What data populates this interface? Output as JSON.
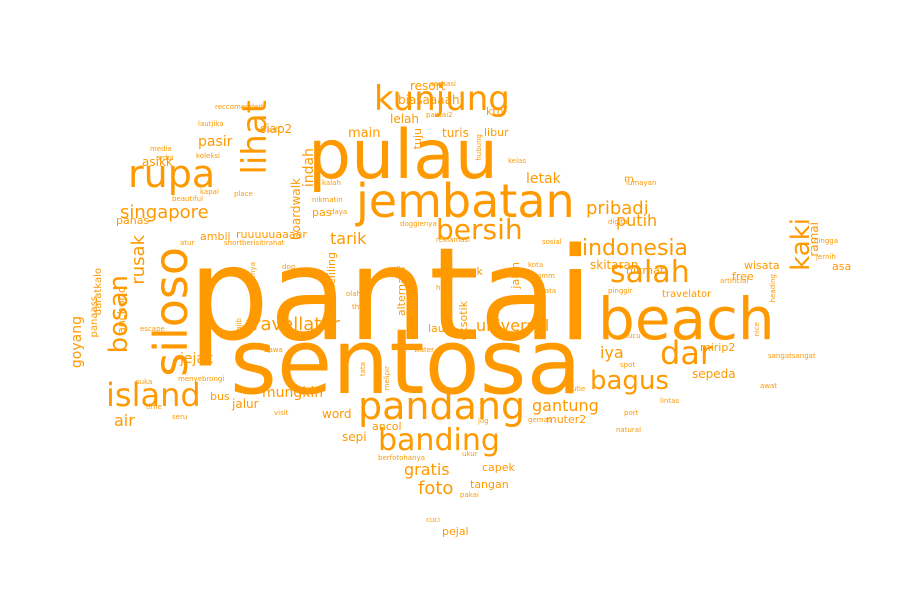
{
  "cloud": {
    "color": "#ff9900",
    "words": [
      {
        "text": "pantai",
        "vertical": false
      },
      {
        "text": "sentosa",
        "vertical": false
      },
      {
        "text": "pulau",
        "vertical": false
      },
      {
        "text": "beach",
        "vertical": false
      },
      {
        "text": "jembatan",
        "vertical": false
      },
      {
        "text": "pandang",
        "vertical": false
      },
      {
        "text": "kunjung",
        "vertical": false
      },
      {
        "text": "rupa",
        "vertical": false
      },
      {
        "text": "siloso",
        "vertical": true
      },
      {
        "text": "island",
        "vertical": false
      },
      {
        "text": "banding",
        "vertical": false
      },
      {
        "text": "lihat",
        "vertical": true
      },
      {
        "text": "bersih",
        "vertical": false
      },
      {
        "text": "salah",
        "vertical": false
      },
      {
        "text": "dar",
        "vertical": false
      },
      {
        "text": "bagus",
        "vertical": false
      },
      {
        "text": "kaki",
        "vertical": true
      },
      {
        "text": "bosan",
        "vertical": true
      },
      {
        "text": "indonesia",
        "vertical": false
      },
      {
        "text": "singapore",
        "vertical": false
      },
      {
        "text": "rusak",
        "vertical": true
      },
      {
        "text": "travellator",
        "vertical": false
      },
      {
        "text": "universal",
        "vertical": false
      },
      {
        "text": "gantung",
        "vertical": false
      },
      {
        "text": "pribadi",
        "vertical": false
      },
      {
        "text": "putih",
        "vertical": false
      },
      {
        "text": "tarik",
        "vertical": false
      },
      {
        "text": "letak",
        "vertical": false
      },
      {
        "text": "foto",
        "vertical": false
      },
      {
        "text": "gratis",
        "vertical": false
      },
      {
        "text": "iya",
        "vertical": false
      },
      {
        "text": "jejak",
        "vertical": false
      },
      {
        "text": "mungkin",
        "vertical": false
      },
      {
        "text": "goyang",
        "vertical": true
      },
      {
        "text": "sepeda",
        "vertical": false
      },
      {
        "text": "mirip2",
        "vertical": false
      },
      {
        "text": "skitaran",
        "vertical": false
      },
      {
        "text": "wisata",
        "vertical": false
      },
      {
        "text": "free",
        "vertical": false
      },
      {
        "text": "travelator",
        "vertical": false
      },
      {
        "text": "ramai",
        "vertical": true
      },
      {
        "text": "asa",
        "vertical": false
      },
      {
        "text": "air",
        "vertical": false
      },
      {
        "text": "indah",
        "vertical": true
      },
      {
        "text": "boardwalk",
        "vertical": true
      },
      {
        "text": "pasir",
        "vertical": false
      },
      {
        "text": "main",
        "vertical": false
      },
      {
        "text": "siap2",
        "vertical": false
      },
      {
        "text": "turis",
        "vertical": false
      },
      {
        "text": "libur",
        "vertical": false
      },
      {
        "text": "tuju",
        "vertical": true
      },
      {
        "text": "lelah",
        "vertical": false
      },
      {
        "text": "biasaaaah",
        "vertical": false
      },
      {
        "text": "resort",
        "vertical": false
      },
      {
        "text": "ktn",
        "vertical": false
      },
      {
        "text": "asikk",
        "vertical": false
      },
      {
        "text": "panas",
        "vertical": false
      },
      {
        "text": "ambil",
        "vertical": false
      },
      {
        "text": "ruuuuuaaaar",
        "vertical": false
      },
      {
        "text": "pas",
        "vertical": false
      },
      {
        "text": "keliling",
        "vertical": true
      },
      {
        "text": "agak",
        "vertical": false
      },
      {
        "text": "laut",
        "vertical": false
      },
      {
        "text": "nikmat",
        "vertical": false
      },
      {
        "text": "anchorid",
        "vertical": true
      },
      {
        "text": "panaass",
        "vertical": true
      },
      {
        "text": "daratkalo",
        "vertical": true
      },
      {
        "text": "jalur",
        "vertical": false
      },
      {
        "text": "word",
        "vertical": false
      },
      {
        "text": "sepi",
        "vertical": false
      },
      {
        "text": "ancol",
        "vertical": false
      },
      {
        "text": "muter2",
        "vertical": false
      },
      {
        "text": "capek",
        "vertical": false
      },
      {
        "text": "tangan",
        "vertical": false
      },
      {
        "text": "pejal",
        "vertical": false
      },
      {
        "text": "bus",
        "vertical": false
      },
      {
        "text": "eksotik",
        "vertical": true
      },
      {
        "text": "alternatif",
        "vertical": true
      },
      {
        "text": "jalan",
        "vertical": true
      },
      {
        "text": "m",
        "vertical": false
      },
      {
        "text": "reccomended",
        "vertical": false
      },
      {
        "text": "lautjika",
        "vertical": false
      },
      {
        "text": "asli",
        "vertical": false
      },
      {
        "text": "media",
        "vertical": false
      },
      {
        "text": "ardoi",
        "vertical": false
      },
      {
        "text": "koleksi",
        "vertical": false
      },
      {
        "text": "kapal",
        "vertical": false
      },
      {
        "text": "beautiful",
        "vertical": false
      },
      {
        "text": "place",
        "vertical": false
      },
      {
        "text": "sensasi",
        "vertical": false
      },
      {
        "text": "pantai2",
        "vertical": false
      },
      {
        "text": "kalah",
        "vertical": false
      },
      {
        "text": "nikmatin",
        "vertical": false
      },
      {
        "text": "daya",
        "vertical": false
      },
      {
        "text": "doggienya",
        "vertical": false
      },
      {
        "text": "shortberisitirahat",
        "vertical": false
      },
      {
        "text": "atur",
        "vertical": false
      },
      {
        "text": "dog",
        "vertical": false
      },
      {
        "text": "olah",
        "vertical": false
      },
      {
        "text": "thie",
        "vertical": false
      },
      {
        "text": "hobi",
        "vertical": false
      },
      {
        "text": "kota",
        "vertical": false
      },
      {
        "text": "reklamasi",
        "vertical": false
      },
      {
        "text": "sosial",
        "vertical": false
      },
      {
        "text": "digital",
        "vertical": false
      },
      {
        "text": "hmmm",
        "vertical": false
      },
      {
        "text": "mata",
        "vertical": false
      },
      {
        "text": "kelas",
        "vertical": false
      },
      {
        "text": "lumayan",
        "vertical": false
      },
      {
        "text": "hubung",
        "vertical": true
      },
      {
        "text": "pinggir",
        "vertical": false
      },
      {
        "text": "artificial",
        "vertical": false
      },
      {
        "text": "heading",
        "vertical": true
      },
      {
        "text": "hingga",
        "vertical": false
      },
      {
        "text": "jernih",
        "vertical": false
      },
      {
        "text": "nice",
        "vertical": true
      },
      {
        "text": "lucu",
        "vertical": false
      },
      {
        "text": "spot",
        "vertical": false
      },
      {
        "text": "sangatsangat",
        "vertical": false
      },
      {
        "text": "awat",
        "vertical": false
      },
      {
        "text": "cutie",
        "vertical": false
      },
      {
        "text": "lintas",
        "vertical": false
      },
      {
        "text": "port",
        "vertical": false
      },
      {
        "text": "natural",
        "vertical": false
      },
      {
        "text": "gemas",
        "vertical": false
      },
      {
        "text": "jog",
        "vertical": false
      },
      {
        "text": "ukur",
        "vertical": false
      },
      {
        "text": "berfotohanya",
        "vertical": false
      },
      {
        "text": "pakai",
        "vertical": false
      },
      {
        "text": "cuci",
        "vertical": false
      },
      {
        "text": "water",
        "vertical": false
      },
      {
        "text": "melipir",
        "vertical": true
      },
      {
        "text": "tata",
        "vertical": true
      },
      {
        "text": "bawa",
        "vertical": false
      },
      {
        "text": "visit",
        "vertical": false
      },
      {
        "text": "seru",
        "vertical": false
      },
      {
        "text": "time",
        "vertical": false
      },
      {
        "text": "suka",
        "vertical": false
      },
      {
        "text": "menyebrongi",
        "vertical": false
      },
      {
        "text": "escape",
        "vertical": false
      },
      {
        "text": "wajib",
        "vertical": true
      },
      {
        "text": "sebenernya",
        "vertical": true
      },
      {
        "text": "gedunggedung",
        "vertical": true
      },
      {
        "text": "orang",
        "vertical": true
      }
    ]
  }
}
